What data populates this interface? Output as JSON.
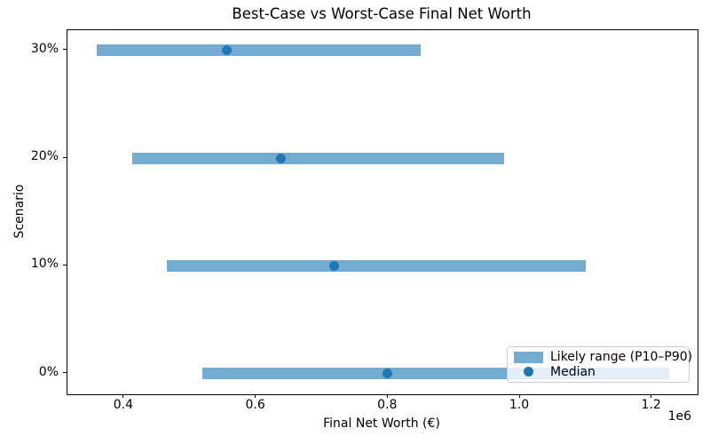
{
  "chart_data": {
    "type": "bar",
    "subtype": "horizontal_range_bars_with_median_dots",
    "title": "Best-Case vs Worst-Case Final Net Worth",
    "xlabel": "Final Net Worth (€)",
    "ylabel": "Scenario",
    "x_offset_label": "1e6",
    "grid": false,
    "categories": [
      "0%",
      "10%",
      "20%",
      "30%"
    ],
    "rows": [
      {
        "label": "0%",
        "y": 0,
        "p10": 519000,
        "median": 799000,
        "p90": 1226000
      },
      {
        "label": "10%",
        "y": 1,
        "p10": 465000,
        "median": 718000,
        "p90": 1100000
      },
      {
        "label": "20%",
        "y": 2,
        "p10": 412000,
        "median": 637000,
        "p90": 976000
      },
      {
        "label": "30%",
        "y": 3,
        "p10": 358000,
        "median": 555000,
        "p90": 850000
      }
    ],
    "xlim": [
      314000,
      1269000
    ],
    "ylim": [
      -0.193,
      3.189
    ],
    "xticks": [
      {
        "value": 400000,
        "label": "0.4"
      },
      {
        "value": 600000,
        "label": "0.6"
      },
      {
        "value": 800000,
        "label": "0.8"
      },
      {
        "value": 1000000,
        "label": "1.0"
      },
      {
        "value": 1200000,
        "label": "1.2"
      }
    ],
    "legend": {
      "position": "lower right",
      "entries": [
        {
          "label": "Likely range (P10–P90)",
          "marker": "bar"
        },
        {
          "label": "Median",
          "marker": "dot"
        }
      ]
    },
    "colors": {
      "range_bar": "#79aed3",
      "range_bar_rgba": "rgba(31,119,180,0.62)",
      "median_dot": "#1f77b4",
      "spine": "#000000",
      "legend_border": "#cccccc"
    }
  }
}
